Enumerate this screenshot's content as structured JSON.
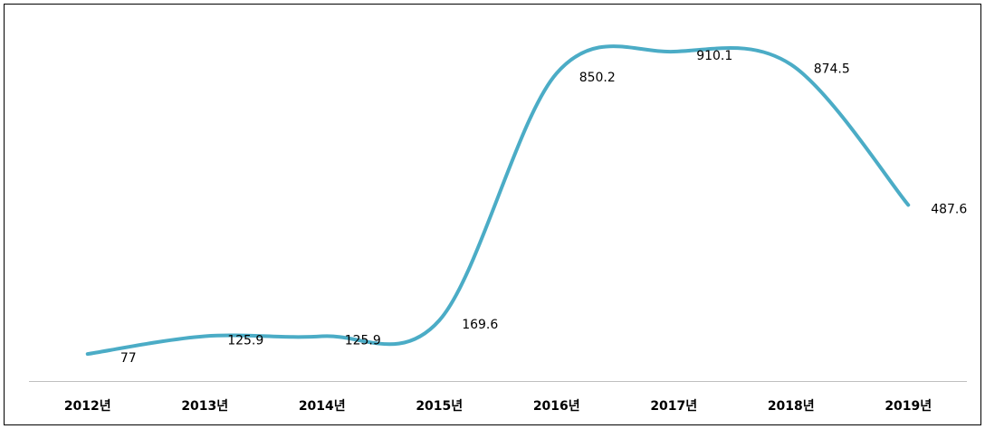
{
  "chart_data": {
    "type": "line",
    "categories": [
      "2012년",
      "2013년",
      "2014년",
      "2015년",
      "2016년",
      "2017년",
      "2018년",
      "2019년"
    ],
    "values": [
      77,
      125.9,
      125.9,
      169.6,
      850.2,
      910.1,
      874.5,
      487.6
    ],
    "color": "#4bacc6",
    "ylim": [
      0,
      1000
    ],
    "smooth": true
  }
}
